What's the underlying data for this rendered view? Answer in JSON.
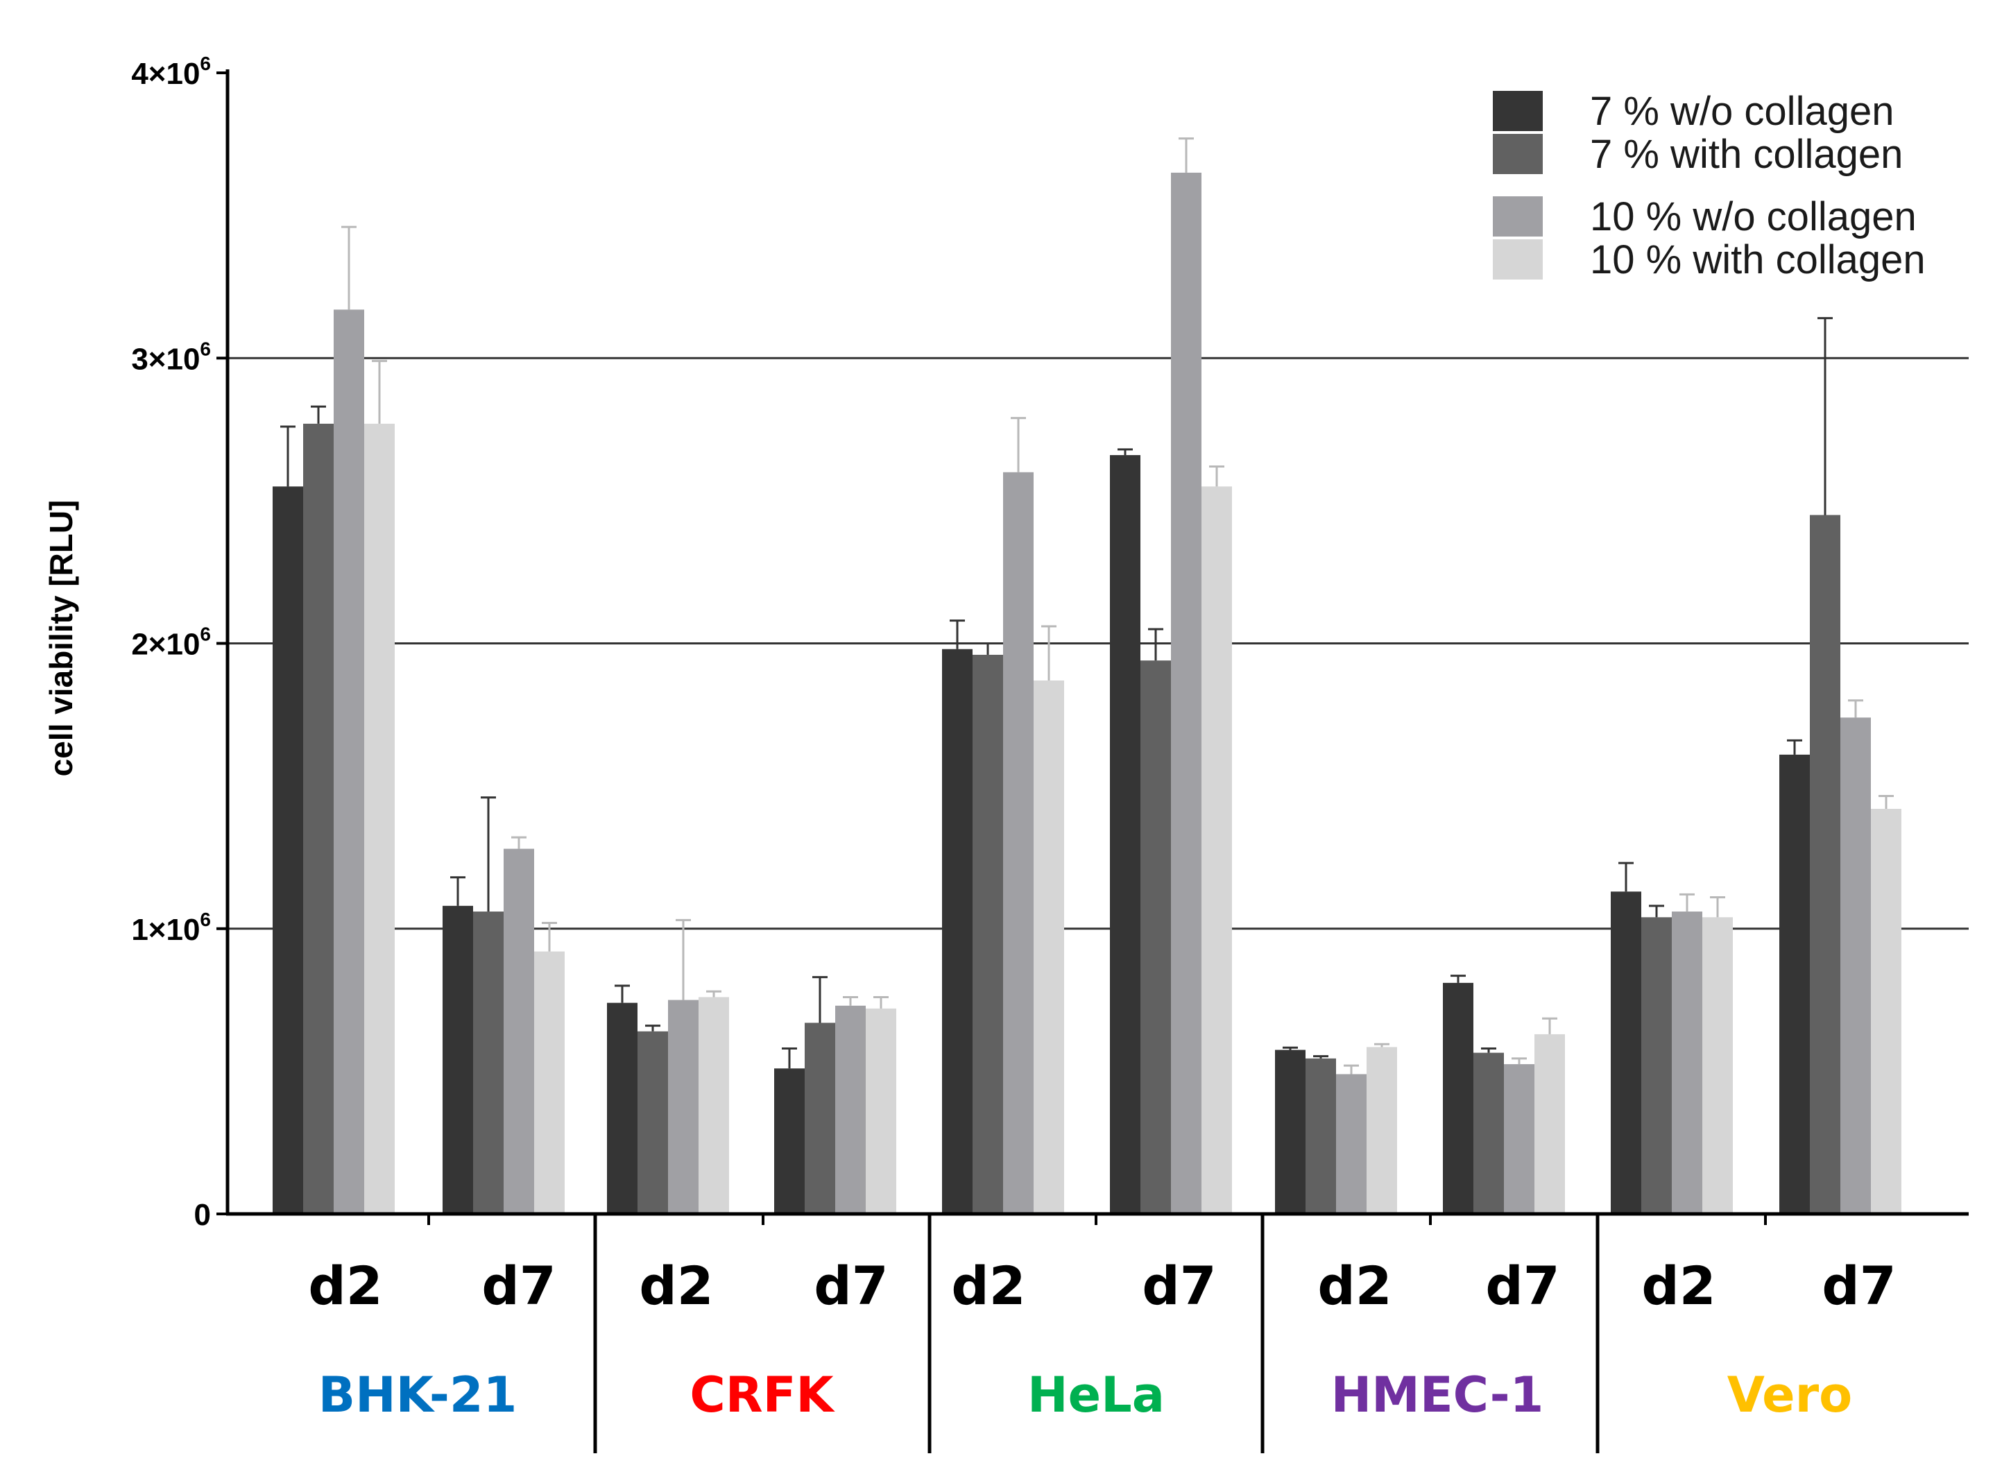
{
  "chart_data": {
    "type": "bar",
    "title": "",
    "ylabel": "cell viability [RLU]",
    "xlabel": "",
    "ylim": [
      0,
      4000000
    ],
    "yticks": [
      {
        "value": 0,
        "label": "0"
      },
      {
        "value": 1000000,
        "label": "1×10",
        "exp": "6"
      },
      {
        "value": 2000000,
        "label": "2×10",
        "exp": "6"
      },
      {
        "value": 3000000,
        "label": "3×10",
        "exp": "6"
      },
      {
        "value": 4000000,
        "label": "4×10",
        "exp": "6"
      }
    ],
    "gridlines": [
      1000000,
      2000000,
      3000000
    ],
    "legend_position": "top-right",
    "series": [
      {
        "name": "7 % w/o collagen",
        "color": "#353535"
      },
      {
        "name": "7 % with collagen",
        "color": "#616161"
      },
      {
        "name": "10 % w/o collagen",
        "color": "#a0a0a4"
      },
      {
        "name": "10 % with collagen",
        "color": "#d6d6d6"
      }
    ],
    "groups": [
      {
        "cell_line": "BHK-21",
        "color": "#0070c0",
        "days": [
          {
            "day": "d2",
            "values": [
              2550000,
              2770000,
              3170000,
              2770000
            ],
            "errors": [
              210000,
              60000,
              290000,
              220000
            ]
          },
          {
            "day": "d7",
            "values": [
              1080000,
              1060000,
              1280000,
              920000
            ],
            "errors": [
              100000,
              400000,
              40000,
              100000
            ]
          }
        ]
      },
      {
        "cell_line": "CRFK",
        "color": "#ff0000",
        "days": [
          {
            "day": "d2",
            "values": [
              740000,
              640000,
              750000,
              760000
            ],
            "errors": [
              60000,
              20000,
              280000,
              20000
            ]
          },
          {
            "day": "d7",
            "values": [
              510000,
              670000,
              730000,
              720000
            ],
            "errors": [
              70000,
              160000,
              30000,
              40000
            ]
          }
        ]
      },
      {
        "cell_line": "HeLa",
        "color": "#00b050",
        "days": [
          {
            "day": "d2",
            "values": [
              1980000,
              1960000,
              2600000,
              1870000
            ],
            "errors": [
              100000,
              40000,
              190000,
              190000
            ]
          },
          {
            "day": "d7",
            "values": [
              2660000,
              1940000,
              3650000,
              2550000
            ],
            "errors": [
              20000,
              110000,
              120000,
              70000
            ]
          }
        ]
      },
      {
        "cell_line": "HMEC-1",
        "color": "#7030a0",
        "days": [
          {
            "day": "d2",
            "values": [
              575000,
              545000,
              490000,
              585000
            ],
            "errors": [
              8000,
              8000,
              30000,
              10000
            ]
          },
          {
            "day": "d7",
            "values": [
              810000,
              565000,
              525000,
              630000
            ],
            "errors": [
              25000,
              15000,
              20000,
              55000
            ]
          }
        ]
      },
      {
        "cell_line": "Vero",
        "color": "#ffc000",
        "days": [
          {
            "day": "d2",
            "values": [
              1130000,
              1040000,
              1060000,
              1040000
            ],
            "errors": [
              100000,
              40000,
              60000,
              70000
            ]
          },
          {
            "day": "d7",
            "values": [
              1610000,
              2450000,
              1740000,
              1420000
            ],
            "errors": [
              50000,
              690000,
              60000,
              45000
            ]
          }
        ]
      }
    ]
  }
}
